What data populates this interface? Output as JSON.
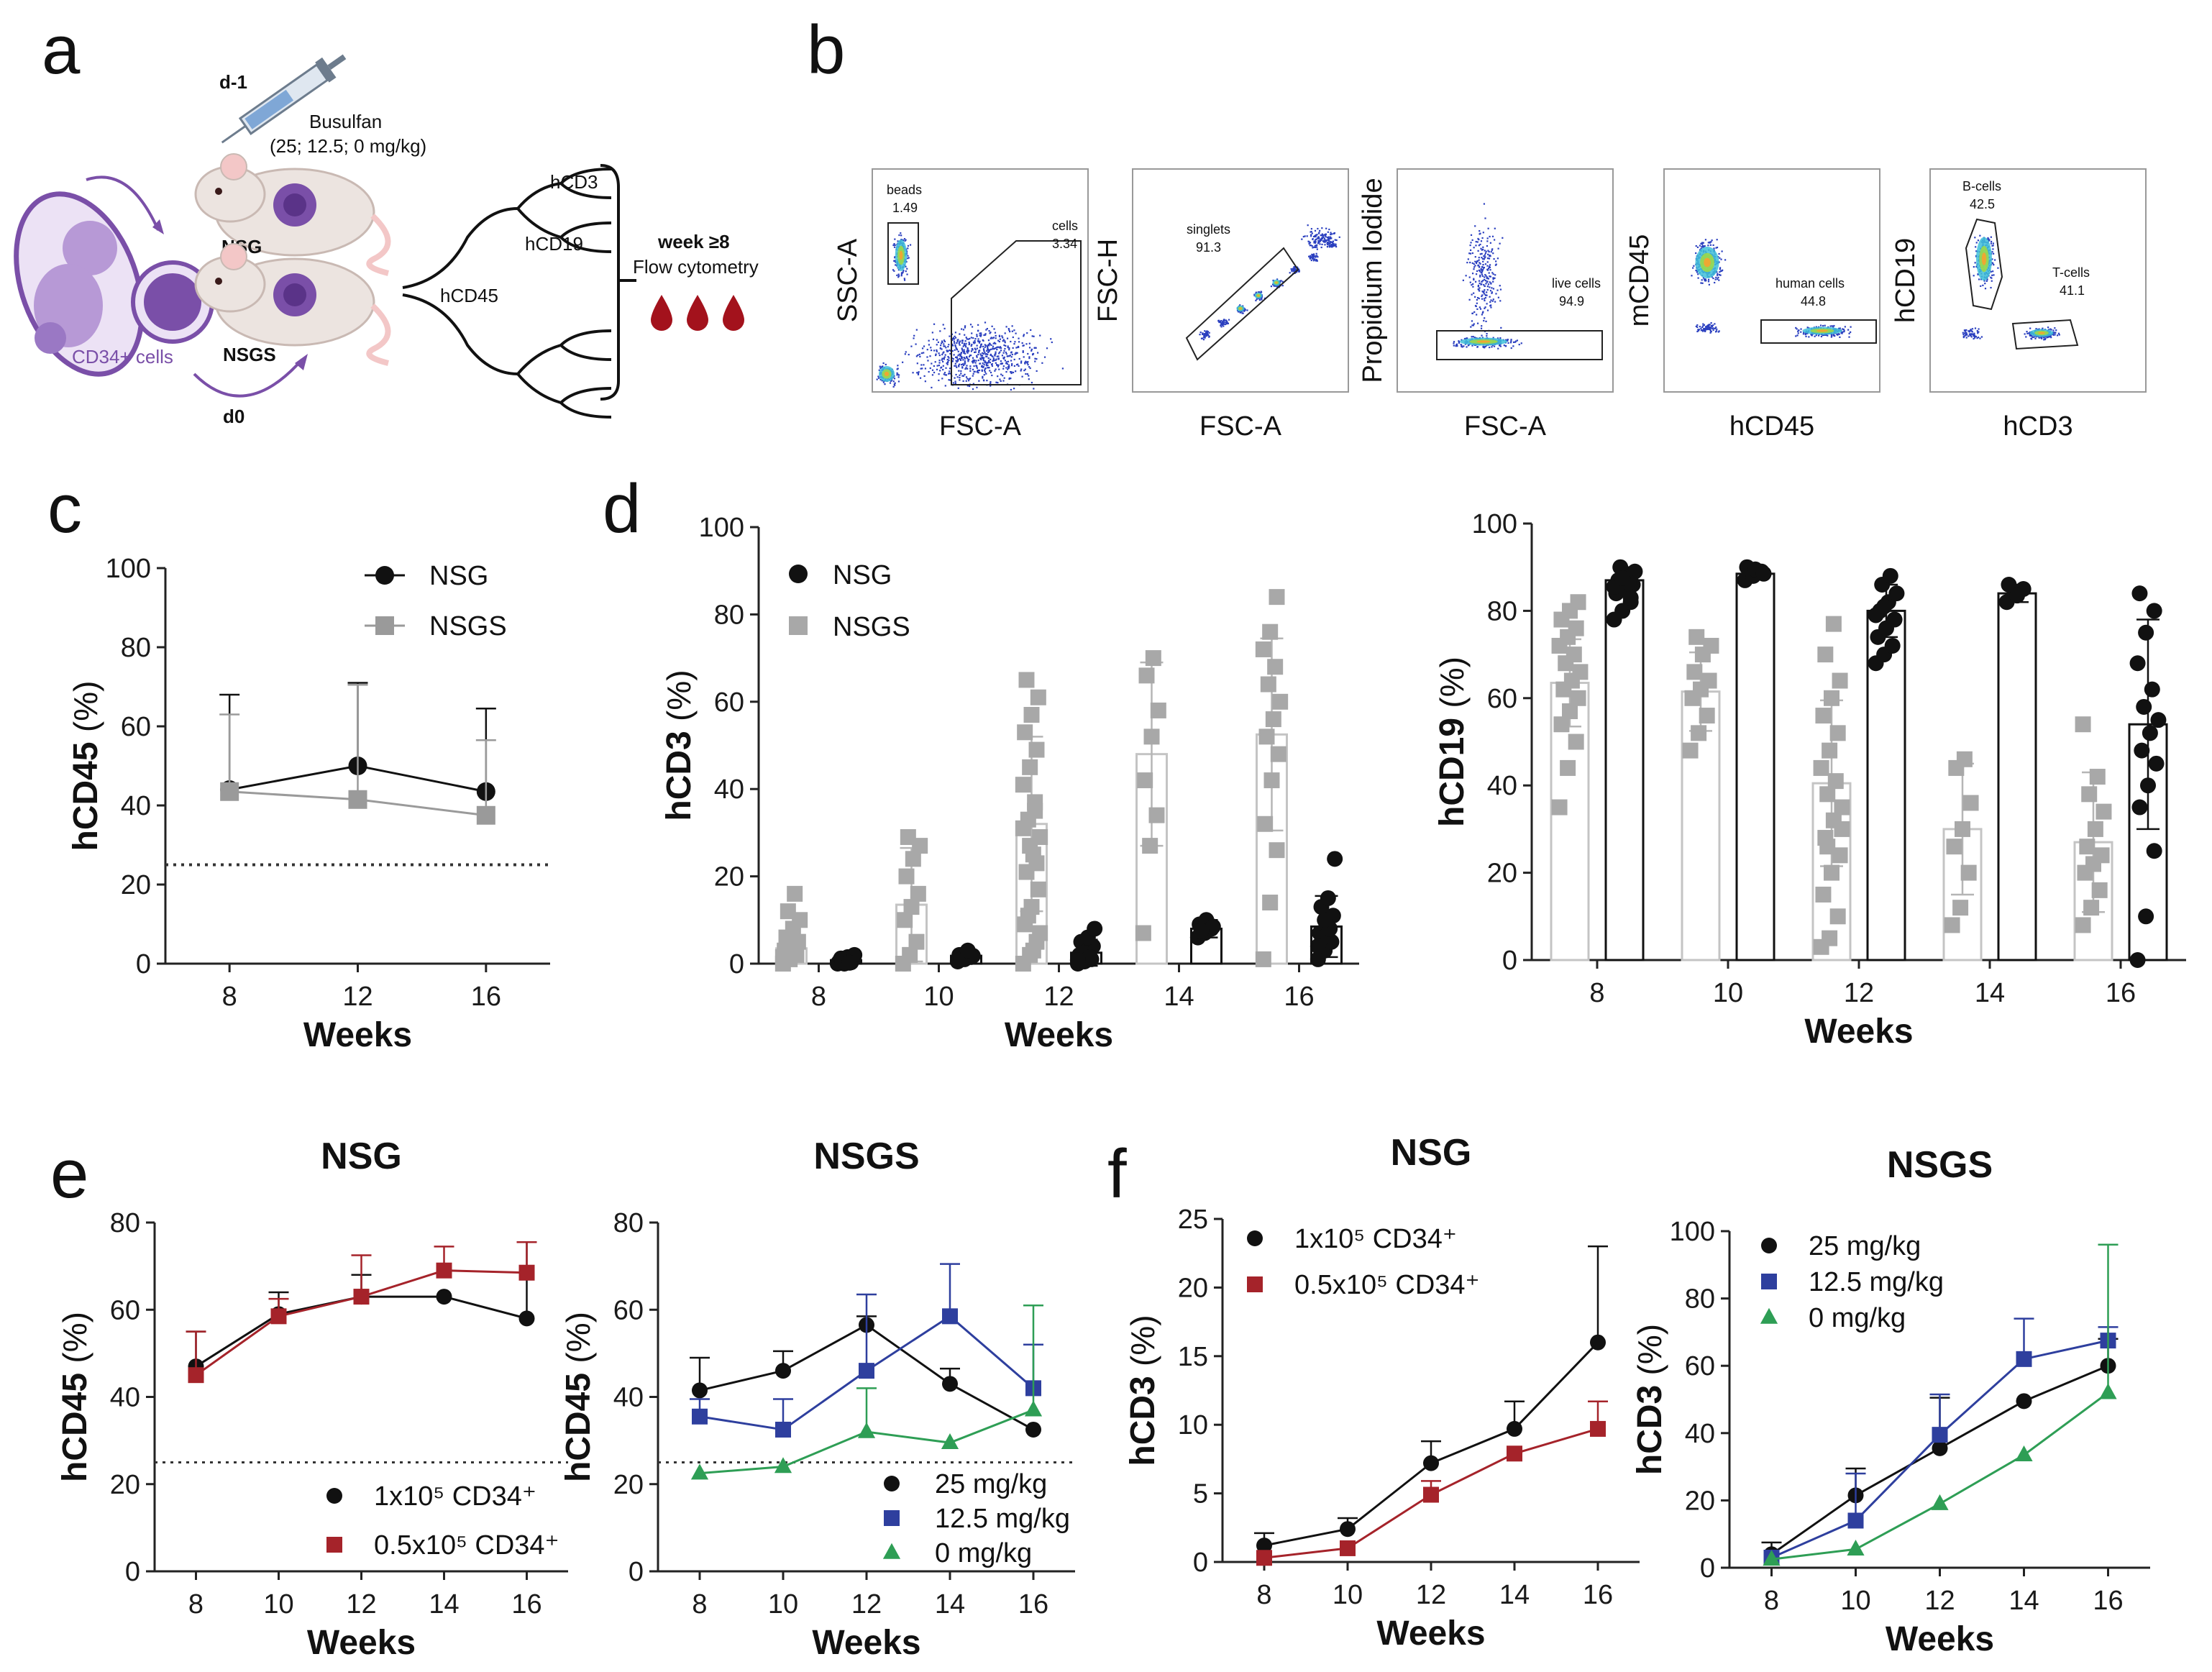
{
  "panels": {
    "a": "a",
    "b": "b",
    "c": "c",
    "d": "d",
    "e": "e",
    "f": "f"
  },
  "schematic": {
    "day_minus1": "d-1",
    "drug": "Busulfan",
    "doses": "(25; 12.5; 0 mg/kg)",
    "strain1": "NSG",
    "strain2": "NSGS",
    "day0": "d0",
    "cells_label": "CD34+ cells",
    "markers": {
      "hcd3": "hCD3",
      "hcd19": "hCD19",
      "hcd45": "hCD45"
    },
    "readout_time": "week ≥8",
    "readout": "Flow cytometry",
    "colors": {
      "purple": "#7a4fa8",
      "blood": "#a3121c",
      "mouse": "#ece4e0"
    }
  },
  "flow_plots": [
    {
      "ylabel": "SSC-A",
      "xlabel": "FSC-A",
      "gates": [
        {
          "name": "beads",
          "value": "1.49"
        },
        {
          "name": "cells",
          "value": "3.34"
        }
      ]
    },
    {
      "ylabel": "FSC-H",
      "xlabel": "FSC-A",
      "gates": [
        {
          "name": "singlets",
          "value": "91.3"
        }
      ]
    },
    {
      "ylabel": "Propidium Iodide",
      "xlabel": "FSC-A",
      "gates": [
        {
          "name": "live cells",
          "value": "94.9"
        }
      ]
    },
    {
      "ylabel": "mCD45",
      "xlabel": "hCD45",
      "gates": [
        {
          "name": "human cells",
          "value": "44.8"
        }
      ]
    },
    {
      "ylabel": "hCD19",
      "xlabel": "hCD3",
      "gates": [
        {
          "name": "B-cells",
          "value": "42.5"
        },
        {
          "name": "T-cells",
          "value": "41.1"
        }
      ]
    }
  ],
  "chart_data": [
    {
      "id": "c",
      "type": "line",
      "title": "",
      "xlabel": "Weeks",
      "ylabel_main": "hCD45",
      "ylabel_unit": "(%)",
      "x": [
        8,
        12,
        16
      ],
      "xlim": [
        6,
        18
      ],
      "ylim": [
        0,
        100
      ],
      "yticks": [
        0,
        20,
        40,
        60,
        80,
        100
      ],
      "threshold": 25,
      "series": [
        {
          "name": "NSG",
          "marker": "circle",
          "color": "#111111",
          "values": [
            44,
            50,
            43.5
          ],
          "err": [
            24,
            21,
            21
          ]
        },
        {
          "name": "NSGS",
          "marker": "square",
          "color": "#9a9a9a",
          "values": [
            43.5,
            41.5,
            37.5
          ],
          "err": [
            19.5,
            29,
            19
          ]
        }
      ]
    },
    {
      "id": "d_hcd3",
      "type": "bar",
      "title": "",
      "xlabel": "Weeks",
      "ylabel_main": "hCD3",
      "ylabel_unit": "(%)",
      "categories": [
        "8",
        "10",
        "12",
        "14",
        "16"
      ],
      "ylim": [
        0,
        100
      ],
      "yticks": [
        0,
        20,
        40,
        60,
        80,
        100
      ],
      "series": [
        {
          "name": "NSG",
          "marker": "circle",
          "color": "#111111",
          "means": [
            0.8,
            1.8,
            2.5,
            8,
            8.5
          ],
          "err": [
            1,
            1,
            3,
            2,
            7
          ],
          "points": [
            [
              0,
              0,
              0.3,
              0.5,
              0.8,
              1,
              1.2,
              1.5,
              2,
              0.5,
              0.2
            ],
            [
              0.5,
              1,
              1.5,
              2,
              2.5,
              1.8,
              1,
              3
            ],
            [
              0,
              0.5,
              1,
              2,
              3,
              4,
              5,
              6,
              8,
              2.5,
              1.5,
              0.8
            ],
            [
              6,
              7,
              8,
              9,
              10,
              8.5,
              7.5
            ],
            [
              1,
              3,
              5,
              7,
              9,
              11,
              13,
              15,
              24,
              6,
              8,
              4,
              10
            ]
          ]
        },
        {
          "name": "NSGS",
          "marker": "square",
          "color": "#a8a8a8",
          "means": [
            3.5,
            13.5,
            32,
            48,
            52.5
          ],
          "err": [
            3,
            13,
            20,
            21,
            22
          ],
          "points": [
            [
              0,
              1,
              2,
              3,
              4,
              5,
              6,
              8,
              10,
              12,
              16,
              1.5,
              2.5,
              3.5
            ],
            [
              0,
              2,
              5,
              10,
              13,
              16,
              20,
              24,
              27,
              29
            ],
            [
              0,
              2,
              5,
              9,
              13,
              17,
              21,
              25,
              29,
              33,
              37,
              41,
              45,
              49,
              53,
              57,
              61,
              65,
              3,
              7,
              11,
              35,
              31,
              27,
              23
            ],
            [
              7,
              27,
              34,
              42,
              52,
              58,
              66,
              70
            ],
            [
              1,
              14,
              26,
              32,
              42,
              48,
              52,
              56,
              60,
              64,
              68,
              72,
              76,
              84
            ]
          ]
        }
      ],
      "legend": [
        {
          "name": "NSG"
        },
        {
          "name": "NSGS"
        }
      ]
    },
    {
      "id": "d_hcd19",
      "type": "bar",
      "title": "",
      "xlabel": "Weeks",
      "ylabel_main": "hCD19",
      "ylabel_unit": "(%)",
      "categories": [
        "8",
        "10",
        "12",
        "14",
        "16"
      ],
      "ylim": [
        0,
        100
      ],
      "yticks": [
        0,
        20,
        40,
        60,
        80,
        100
      ],
      "series": [
        {
          "name": "NSGS",
          "marker": "square",
          "color": "#a8a8a8",
          "means": [
            63.5,
            61.5,
            40.5,
            30,
            27
          ],
          "err": [
            10,
            9,
            19,
            15,
            16
          ],
          "points": [
            [
              35,
              44,
              50,
              54,
              57,
              60,
              62,
              64,
              66,
              68,
              70,
              72,
              74,
              76,
              78,
              80,
              82
            ],
            [
              48,
              52,
              56,
              60,
              62,
              64,
              66,
              70,
              72,
              74
            ],
            [
              3,
              5,
              10,
              15,
              20,
              24,
              28,
              32,
              35,
              38,
              41,
              44,
              48,
              52,
              56,
              60,
              64,
              70,
              77,
              30,
              26
            ],
            [
              8,
              12,
              20,
              26,
              30,
              36,
              44,
              46
            ],
            [
              8,
              12,
              16,
              20,
              22,
              24,
              26,
              30,
              34,
              38,
              42,
              54
            ]
          ]
        },
        {
          "name": "NSG",
          "marker": "circle",
          "color": "#111111",
          "means": [
            87,
            88.5,
            80,
            84,
            54
          ],
          "err": [
            3,
            1,
            6,
            2,
            24
          ],
          "points": [
            [
              78,
              80,
              82,
              84,
              85,
              86,
              87,
              88,
              89,
              90,
              86.5,
              85.5,
              87.5,
              83
            ],
            [
              87,
              88,
              89,
              90,
              89.5,
              88.5
            ],
            [
              68,
              70,
              72,
              74,
              76,
              78,
              80,
              82,
              84,
              86,
              88,
              79,
              81
            ],
            [
              82,
              84,
              85,
              86,
              83.5
            ],
            [
              0,
              10,
              25,
              35,
              40,
              45,
              48,
              52,
              55,
              58,
              62,
              68,
              75,
              80,
              84
            ]
          ]
        }
      ]
    },
    {
      "id": "e_nsg",
      "type": "line",
      "title": "NSG",
      "xlabel": "Weeks",
      "ylabel_main": "hCD45",
      "ylabel_unit": "(%)",
      "x": [
        8,
        10,
        12,
        14,
        16
      ],
      "ylim": [
        0,
        80
      ],
      "yticks": [
        0,
        20,
        40,
        60,
        80
      ],
      "threshold": 25,
      "series": [
        {
          "name": "1x10⁵ CD34⁺",
          "marker": "circle",
          "color": "#111111",
          "values": [
            47,
            59,
            63,
            63,
            58
          ],
          "err": [
            8,
            5,
            5,
            0,
            17.5
          ]
        },
        {
          "name": "0.5x10⁵ CD34⁺",
          "marker": "square",
          "color": "#a5232a",
          "values": [
            45,
            58.5,
            63,
            69,
            68.5
          ],
          "err": [
            10,
            4,
            9.5,
            5.5,
            7
          ]
        }
      ]
    },
    {
      "id": "e_nsgs",
      "type": "line",
      "title": "NSGS",
      "xlabel": "Weeks",
      "ylabel_main": "hCD45",
      "ylabel_unit": "(%)",
      "x": [
        8,
        10,
        12,
        14,
        16
      ],
      "ylim": [
        0,
        80
      ],
      "yticks": [
        0,
        20,
        40,
        60,
        80
      ],
      "threshold": 25,
      "series": [
        {
          "name": "25 mg/kg",
          "marker": "circle",
          "color": "#111111",
          "values": [
            41.5,
            46,
            56.5,
            43,
            32.5
          ],
          "err": [
            7.5,
            4.5,
            2,
            3.5,
            0
          ]
        },
        {
          "name": "12.5 mg/kg",
          "marker": "square",
          "color": "#2e3f9e",
          "values": [
            35.5,
            32.5,
            46,
            58.5,
            42
          ],
          "err": [
            4,
            7,
            17.5,
            12,
            10
          ]
        },
        {
          "name": "0 mg/kg",
          "marker": "triangle",
          "color": "#2e9e55",
          "values": [
            22.5,
            24,
            32,
            29.5,
            37
          ],
          "err": [
            0,
            0,
            10,
            0,
            24
          ]
        }
      ]
    },
    {
      "id": "f_nsg",
      "type": "line",
      "title": "NSG",
      "xlabel": "Weeks",
      "ylabel_main": "hCD3",
      "ylabel_unit": "(%)",
      "x": [
        8,
        10,
        12,
        14,
        16
      ],
      "ylim": [
        0,
        25
      ],
      "yticks": [
        0,
        5,
        10,
        15,
        20,
        25
      ],
      "series": [
        {
          "name": "1x10⁵ CD34⁺",
          "marker": "circle",
          "color": "#111111",
          "values": [
            1.2,
            2.4,
            7.2,
            9.7,
            16
          ],
          "err": [
            0.9,
            0.8,
            1.6,
            2,
            7
          ]
        },
        {
          "name": "0.5x10⁵ CD34⁺",
          "marker": "square",
          "color": "#a5232a",
          "values": [
            0.3,
            1,
            4.9,
            7.9,
            9.7
          ],
          "err": [
            0,
            0,
            1,
            0,
            2
          ]
        }
      ]
    },
    {
      "id": "f_nsgs",
      "type": "line",
      "title": "NSGS",
      "xlabel": "Weeks",
      "ylabel_main": "hCD3",
      "ylabel_unit": "(%)",
      "x": [
        8,
        10,
        12,
        14,
        16
      ],
      "ylim": [
        0,
        100
      ],
      "yticks": [
        0,
        20,
        40,
        60,
        80,
        100
      ],
      "series": [
        {
          "name": "25 mg/kg",
          "marker": "circle",
          "color": "#111111",
          "values": [
            4,
            21.5,
            35.5,
            49.5,
            60
          ],
          "err": [
            3.5,
            8,
            15,
            0,
            8
          ]
        },
        {
          "name": "12.5 mg/kg",
          "marker": "square",
          "color": "#2e3f9e",
          "values": [
            3,
            14,
            39.5,
            62,
            67.5
          ],
          "err": [
            0,
            14,
            12,
            12,
            4
          ]
        },
        {
          "name": "0 mg/kg",
          "marker": "triangle",
          "color": "#2e9e55",
          "values": [
            2.5,
            5.5,
            19,
            33.5,
            52
          ],
          "err": [
            0,
            0,
            0,
            0,
            44
          ]
        }
      ]
    }
  ]
}
